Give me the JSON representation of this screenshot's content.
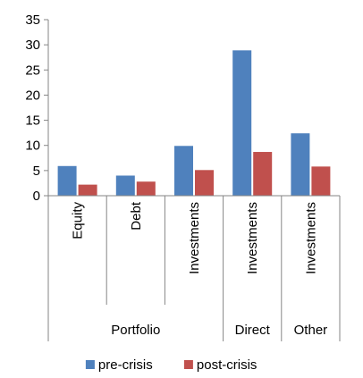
{
  "chart_data": {
    "type": "bar",
    "title": "",
    "xlabel": "",
    "ylabel": "",
    "ylim": [
      0,
      35
    ],
    "yticks": [
      0,
      5,
      10,
      15,
      20,
      25,
      30,
      35
    ],
    "grid": false,
    "legend_position": "bottom",
    "categories": [
      {
        "label": "Equity",
        "group": "Portfolio"
      },
      {
        "label": "Debt",
        "group": "Portfolio"
      },
      {
        "label": "Investments",
        "group": "Portfolio"
      },
      {
        "label": "Investments",
        "group": "Direct"
      },
      {
        "label": "Investments",
        "group": "Other"
      }
    ],
    "groups": [
      {
        "label": "Portfolio",
        "span": 3
      },
      {
        "label": "Direct",
        "span": 1
      },
      {
        "label": "Other",
        "span": 1
      }
    ],
    "series": [
      {
        "name": "pre-crisis",
        "color": "#4f81bd",
        "values": [
          5.9,
          4.0,
          9.9,
          28.9,
          12.4
        ]
      },
      {
        "name": "post-crisis",
        "color": "#c0504d",
        "values": [
          2.2,
          2.8,
          5.1,
          8.7,
          5.8
        ]
      }
    ]
  }
}
